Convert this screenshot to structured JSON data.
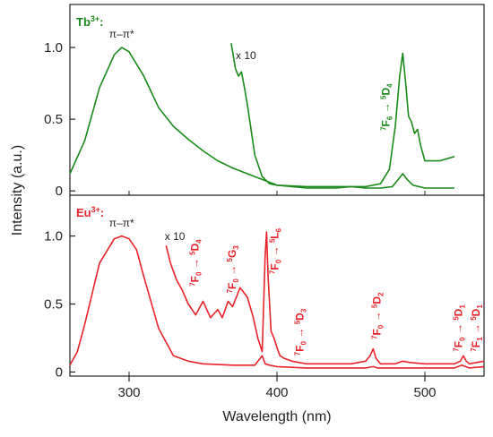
{
  "chart_data": [
    {
      "type": "line",
      "panel_label": "Tb",
      "panel_label_sup": "3+",
      "panel_label_suffix": ":",
      "color": "#1a8a1a",
      "xlim": [
        260,
        540
      ],
      "ylim": [
        -0.03,
        1.3
      ],
      "yticks": [
        0,
        0.5,
        1.0
      ],
      "ytick_labels": [
        "0",
        "0.5",
        "1.0"
      ],
      "series": [
        {
          "x": [
            260,
            270,
            280,
            290,
            295,
            300,
            310,
            320,
            330,
            340,
            350,
            360,
            370,
            380,
            390,
            400,
            420,
            440,
            450,
            460,
            470,
            478,
            482,
            485,
            488,
            492,
            500,
            510,
            520
          ],
          "y": [
            0.12,
            0.35,
            0.72,
            0.95,
            1.0,
            0.97,
            0.8,
            0.58,
            0.45,
            0.36,
            0.28,
            0.21,
            0.16,
            0.12,
            0.08,
            0.04,
            0.02,
            0.02,
            0.03,
            0.02,
            0.02,
            0.03,
            0.08,
            0.12,
            0.08,
            0.04,
            0.02,
            0.02,
            0.02
          ]
        },
        {
          "x": [
            369,
            372,
            374,
            376,
            378,
            380,
            385,
            390,
            395,
            400,
            420,
            440,
            460,
            470,
            476,
            480,
            483,
            485,
            487,
            489,
            491,
            493,
            495,
            497,
            500,
            510,
            520
          ],
          "y": [
            1.03,
            0.85,
            0.8,
            0.83,
            0.72,
            0.6,
            0.25,
            0.1,
            0.05,
            0.04,
            0.03,
            0.03,
            0.03,
            0.05,
            0.15,
            0.45,
            0.8,
            0.96,
            0.75,
            0.52,
            0.48,
            0.4,
            0.43,
            0.32,
            0.21,
            0.21,
            0.24
          ]
        }
      ],
      "annotations": [
        {
          "text": "π–π*",
          "x": 295,
          "y": 1.07
        },
        {
          "text": "x 10",
          "x": 379,
          "y": 0.92
        }
      ],
      "transitions": [
        {
          "from_sup": "7",
          "from": "F",
          "from_sub": "6",
          "arrow": "→",
          "to_sup": "5",
          "to": "D",
          "to_sub": "4",
          "x": 476,
          "y": 0.42
        }
      ]
    },
    {
      "type": "line",
      "panel_label": "Eu",
      "panel_label_sup": "3+",
      "panel_label_suffix": ":",
      "color": "#e8232a",
      "xlim": [
        260,
        540
      ],
      "ylim": [
        -0.03,
        1.3
      ],
      "yticks": [
        0,
        0.5,
        1.0
      ],
      "ytick_labels": [
        "0",
        "0.5",
        "1.0"
      ],
      "xticks": [
        300,
        400,
        500
      ],
      "xtick_labels": [
        "300",
        "400",
        "500"
      ],
      "ylabel": "Intensity (a.u.)",
      "xlabel": "Wavelength (nm)",
      "series": [
        {
          "x": [
            260,
            265,
            270,
            280,
            290,
            295,
            300,
            305,
            310,
            320,
            330,
            340,
            350,
            370,
            385,
            390,
            392,
            395,
            400,
            420,
            440,
            460,
            465,
            468,
            480,
            500,
            520,
            525,
            530,
            540
          ],
          "y": [
            0.05,
            0.15,
            0.35,
            0.8,
            0.98,
            1.0,
            0.98,
            0.9,
            0.7,
            0.32,
            0.12,
            0.08,
            0.06,
            0.05,
            0.05,
            0.12,
            0.06,
            0.05,
            0.04,
            0.03,
            0.03,
            0.03,
            0.04,
            0.03,
            0.03,
            0.03,
            0.03,
            0.05,
            0.03,
            0.04
          ]
        },
        {
          "x": [
            325,
            328,
            332,
            336,
            340,
            345,
            350,
            355,
            360,
            363,
            367,
            370,
            375,
            380,
            384,
            387,
            390,
            392,
            393,
            394,
            396,
            398,
            400,
            402,
            405,
            410,
            415,
            420,
            430,
            440,
            450,
            460,
            463,
            465,
            467,
            470,
            480,
            485,
            490,
            500,
            510,
            520,
            524,
            526,
            528,
            530,
            535,
            540
          ],
          "y": [
            0.93,
            0.8,
            0.68,
            0.6,
            0.5,
            0.42,
            0.52,
            0.4,
            0.46,
            0.4,
            0.52,
            0.48,
            0.62,
            0.55,
            0.4,
            0.25,
            0.15,
            0.85,
            1.03,
            0.7,
            0.3,
            0.25,
            0.18,
            0.12,
            0.1,
            0.08,
            0.07,
            0.06,
            0.06,
            0.06,
            0.06,
            0.08,
            0.12,
            0.17,
            0.1,
            0.06,
            0.06,
            0.08,
            0.07,
            0.06,
            0.06,
            0.06,
            0.08,
            0.12,
            0.08,
            0.06,
            0.07,
            0.08
          ]
        }
      ],
      "annotations": [
        {
          "text": "π–π*",
          "x": 295,
          "y": 1.07
        },
        {
          "text": "x 10",
          "x": 331,
          "y": 0.97
        }
      ],
      "transitions": [
        {
          "from_sup": "7",
          "from": "F",
          "from_sub": "0",
          "arrow": "→",
          "to_sup": "5",
          "to": "D",
          "to_sub": "4",
          "x": 347,
          "y": 0.63
        },
        {
          "from_sup": "7",
          "from": "F",
          "from_sub": "0",
          "arrow": "→",
          "to_sup": "5",
          "to": "G",
          "to_sub": "3",
          "x": 372,
          "y": 0.58
        },
        {
          "from_sup": "7",
          "from": "F",
          "from_sub": "0",
          "arrow": "→",
          "to_sup": "5",
          "to": "L",
          "to_sub": "6",
          "x": 401,
          "y": 0.72
        },
        {
          "from_sup": "7",
          "from": "F",
          "from_sub": "0",
          "arrow": "→",
          "to_sup": "5",
          "to": "D",
          "to_sub": "3",
          "x": 418,
          "y": 0.12
        },
        {
          "from_sup": "7",
          "from": "F",
          "from_sub": "0",
          "arrow": "→",
          "to_sup": "5",
          "to": "D",
          "to_sub": "2",
          "x": 470,
          "y": 0.24
        },
        {
          "from_sup": "7",
          "from": "F",
          "from_sub": "0",
          "arrow": "→",
          "to_sup": "5",
          "to": "D",
          "to_sub": "1",
          "x": 525,
          "y": 0.15
        },
        {
          "from_sup": "7",
          "from": "F",
          "from_sub": "1",
          "arrow": "→",
          "to_sup": "5",
          "to": "D",
          "to_sub": "1",
          "x": 537,
          "y": 0.15
        }
      ]
    }
  ]
}
